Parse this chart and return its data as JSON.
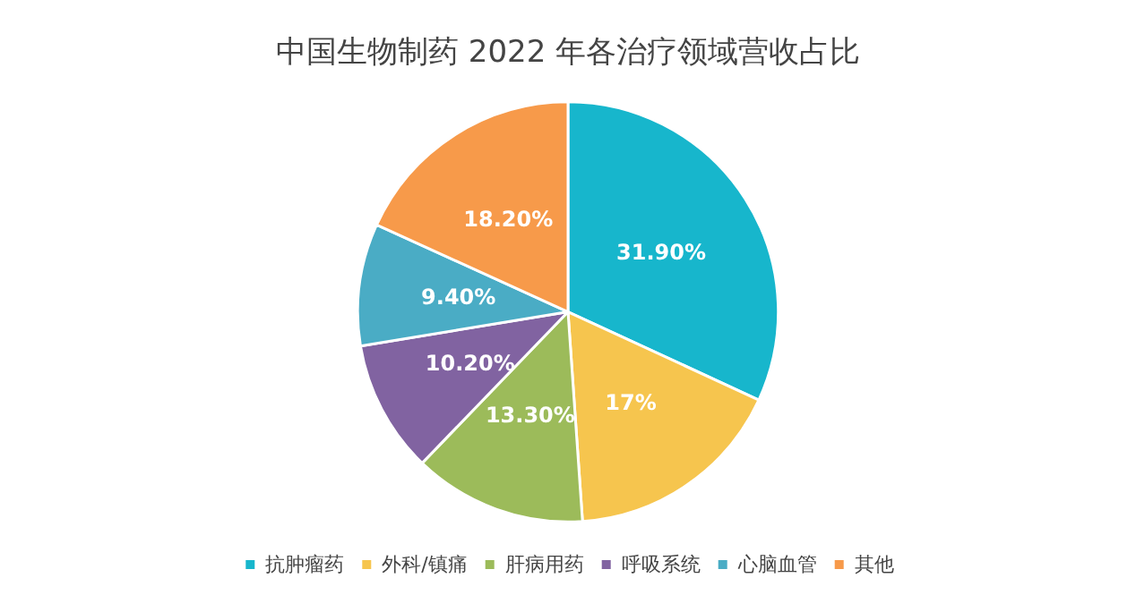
{
  "chart_data": {
    "type": "pie",
    "title": "中国生物制药 2022 年各治疗领域营收占比",
    "categories": [
      "抗肿瘤药",
      "外科/镇痛",
      "肝病用药",
      "呼吸系统",
      "心脑血管",
      "其他"
    ],
    "values": [
      31.9,
      17,
      13.3,
      10.2,
      9.4,
      18.2
    ],
    "value_labels": [
      "31.90%",
      "17%",
      "13.30%",
      "10.20%",
      "9.40%",
      "18.20%"
    ],
    "colors": [
      "#17b6cc",
      "#f6c54e",
      "#9cbb5a",
      "#8163a1",
      "#4aacc5",
      "#f79a4a"
    ],
    "legend": "bottom"
  }
}
